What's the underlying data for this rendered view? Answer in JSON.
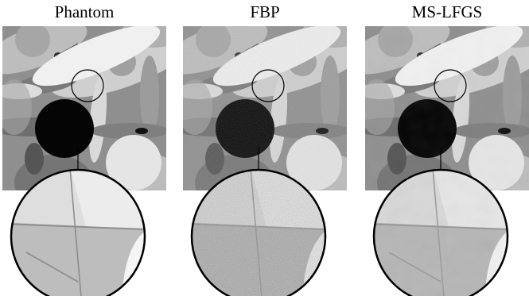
{
  "figure": {
    "panels": [
      {
        "title": "Phantom",
        "noise": "none"
      },
      {
        "title": "FBP",
        "noise": "high"
      },
      {
        "title": "MS-LFGS",
        "noise": "low"
      }
    ]
  }
}
